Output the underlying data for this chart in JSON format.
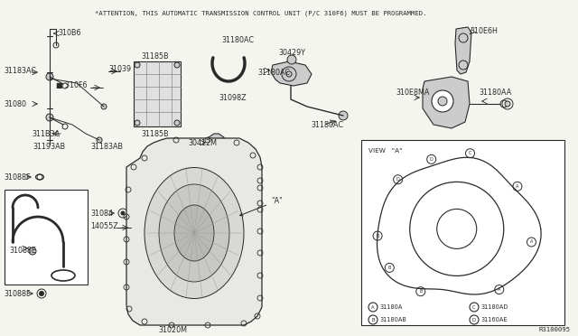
{
  "bg_color": "#f5f5f0",
  "line_color": "#2a2a2a",
  "attention_text": "*ATTENTION, THIS AUTOMATIC TRANSMISSION CONTROL UNIT (P/C 310F6) MUST BE PROGRAMMED.",
  "diagram_id": "R3100095",
  "view_a_label": "VIEW   \"A\"",
  "legend": [
    [
      "A",
      "31180A",
      "C",
      "31180AD"
    ],
    [
      "B",
      "31180AB",
      "D",
      "31160AE"
    ]
  ],
  "fs_label": 5.8,
  "fs_tiny": 4.8,
  "fs_note": 5.2
}
